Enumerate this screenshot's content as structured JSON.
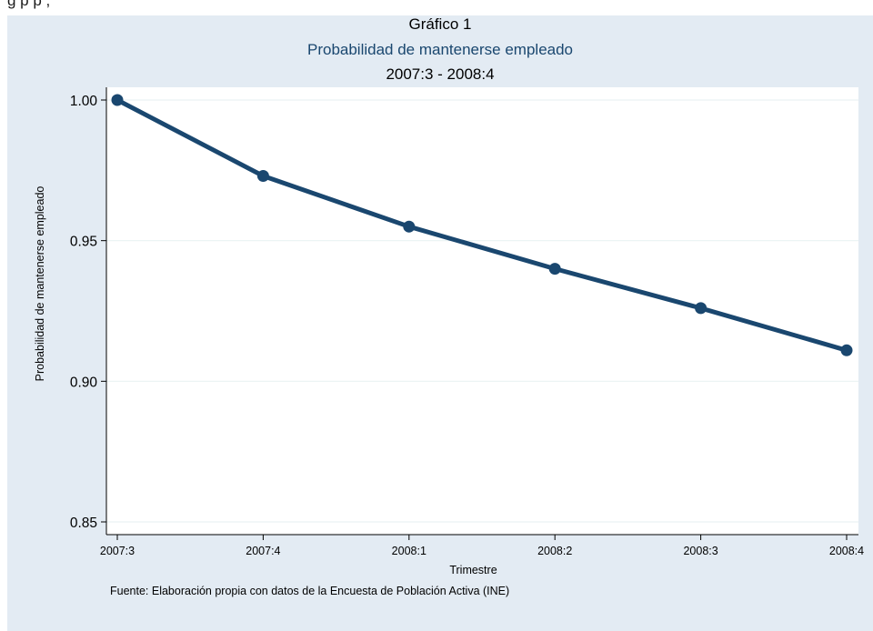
{
  "header_fragment": "g                                                                         p                        p           ,",
  "chart_data": {
    "type": "line",
    "title": "Gráfico 1",
    "subtitle": "Probabilidad de mantenerse empleado",
    "period": "2007:3 - 2008:4",
    "xlabel": "Trimestre",
    "ylabel": "Probabilidad de mantenerse empleado",
    "categories": [
      "2007:3",
      "2007:4",
      "2008:1",
      "2008:2",
      "2008:3",
      "2008:4"
    ],
    "series": [
      {
        "values": [
          1.0,
          0.973,
          0.955,
          0.94,
          0.926,
          0.911
        ]
      }
    ],
    "ylim": [
      0.85,
      1.0
    ],
    "yticks": [
      0.85,
      0.9,
      0.95,
      1.0
    ],
    "ytick_labels": [
      "0.85",
      "0.90",
      "0.95",
      "1.00"
    ],
    "grid": true,
    "legend": false,
    "source": "Fuente: Elaboración propia con datos de la Encuesta de Población Activa (INE)",
    "colors": {
      "line": "#1a476f",
      "background": "#e3ebf3",
      "plot_background": "#ffffff",
      "grid": "#eaf2f3",
      "subtitle": "#1a476f"
    }
  }
}
